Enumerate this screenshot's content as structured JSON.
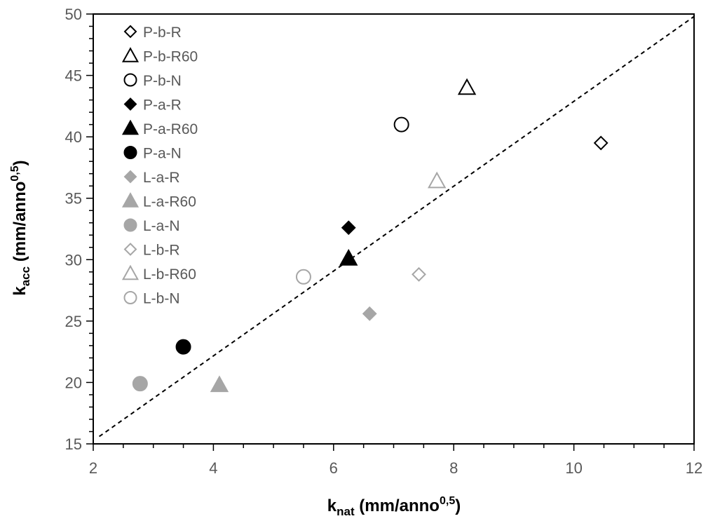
{
  "chart_data": {
    "type": "scatter",
    "xlabel": {
      "main": "k",
      "sub": "nat",
      "rest": " (mm/anno",
      "sup": "0,5",
      "close": ")"
    },
    "ylabel": {
      "main": "k",
      "sub": "acc",
      "rest": " (mm/anno",
      "sup": "0,5",
      "close": ")"
    },
    "xlim": [
      2,
      12
    ],
    "ylim": [
      15,
      50
    ],
    "xticks": [
      2,
      4,
      6,
      8,
      10,
      12
    ],
    "yticks": [
      15,
      20,
      25,
      30,
      35,
      40,
      45,
      50
    ],
    "grid": false,
    "legend_position": "top-left",
    "reference_line": {
      "style": "dashed",
      "x": [
        2.1,
        12
      ],
      "y": [
        15.6,
        49.8
      ]
    },
    "series": [
      {
        "name": "P-b-R",
        "marker": "diamond",
        "fill": "none",
        "color": "#000000",
        "points": [
          {
            "x": 10.45,
            "y": 39.5
          }
        ]
      },
      {
        "name": "P-b-R60",
        "marker": "triangle",
        "fill": "none",
        "color": "#000000",
        "points": [
          {
            "x": 8.22,
            "y": 44.0
          }
        ]
      },
      {
        "name": "P-b-N",
        "marker": "circle",
        "fill": "none",
        "color": "#000000",
        "points": [
          {
            "x": 7.13,
            "y": 41.0
          }
        ]
      },
      {
        "name": "P-a-R",
        "marker": "diamond",
        "fill": "#000000",
        "color": "#000000",
        "points": [
          {
            "x": 6.25,
            "y": 32.6
          }
        ]
      },
      {
        "name": "P-a-R60",
        "marker": "triangle",
        "fill": "#000000",
        "color": "#000000",
        "points": [
          {
            "x": 6.25,
            "y": 30.1
          }
        ]
      },
      {
        "name": "P-a-N",
        "marker": "circle",
        "fill": "#000000",
        "color": "#000000",
        "points": [
          {
            "x": 3.5,
            "y": 22.9
          }
        ]
      },
      {
        "name": "L-a-R",
        "marker": "diamond",
        "fill": "#a6a6a6",
        "color": "#a6a6a6",
        "points": [
          {
            "x": 6.6,
            "y": 25.6
          }
        ]
      },
      {
        "name": "L-a-R60",
        "marker": "triangle",
        "fill": "#a6a6a6",
        "color": "#a6a6a6",
        "points": [
          {
            "x": 4.1,
            "y": 19.8
          }
        ]
      },
      {
        "name": "L-a-N",
        "marker": "circle",
        "fill": "#a6a6a6",
        "color": "#a6a6a6",
        "points": [
          {
            "x": 2.78,
            "y": 19.9
          }
        ]
      },
      {
        "name": "L-b-R",
        "marker": "diamond",
        "fill": "none",
        "color": "#a6a6a6",
        "points": [
          {
            "x": 7.42,
            "y": 28.8
          }
        ]
      },
      {
        "name": "L-b-R60",
        "marker": "triangle",
        "fill": "none",
        "color": "#a6a6a6",
        "points": [
          {
            "x": 7.72,
            "y": 36.4
          }
        ]
      },
      {
        "name": "L-b-N",
        "marker": "circle",
        "fill": "none",
        "color": "#a6a6a6",
        "points": [
          {
            "x": 5.5,
            "y": 28.6
          }
        ]
      }
    ]
  }
}
